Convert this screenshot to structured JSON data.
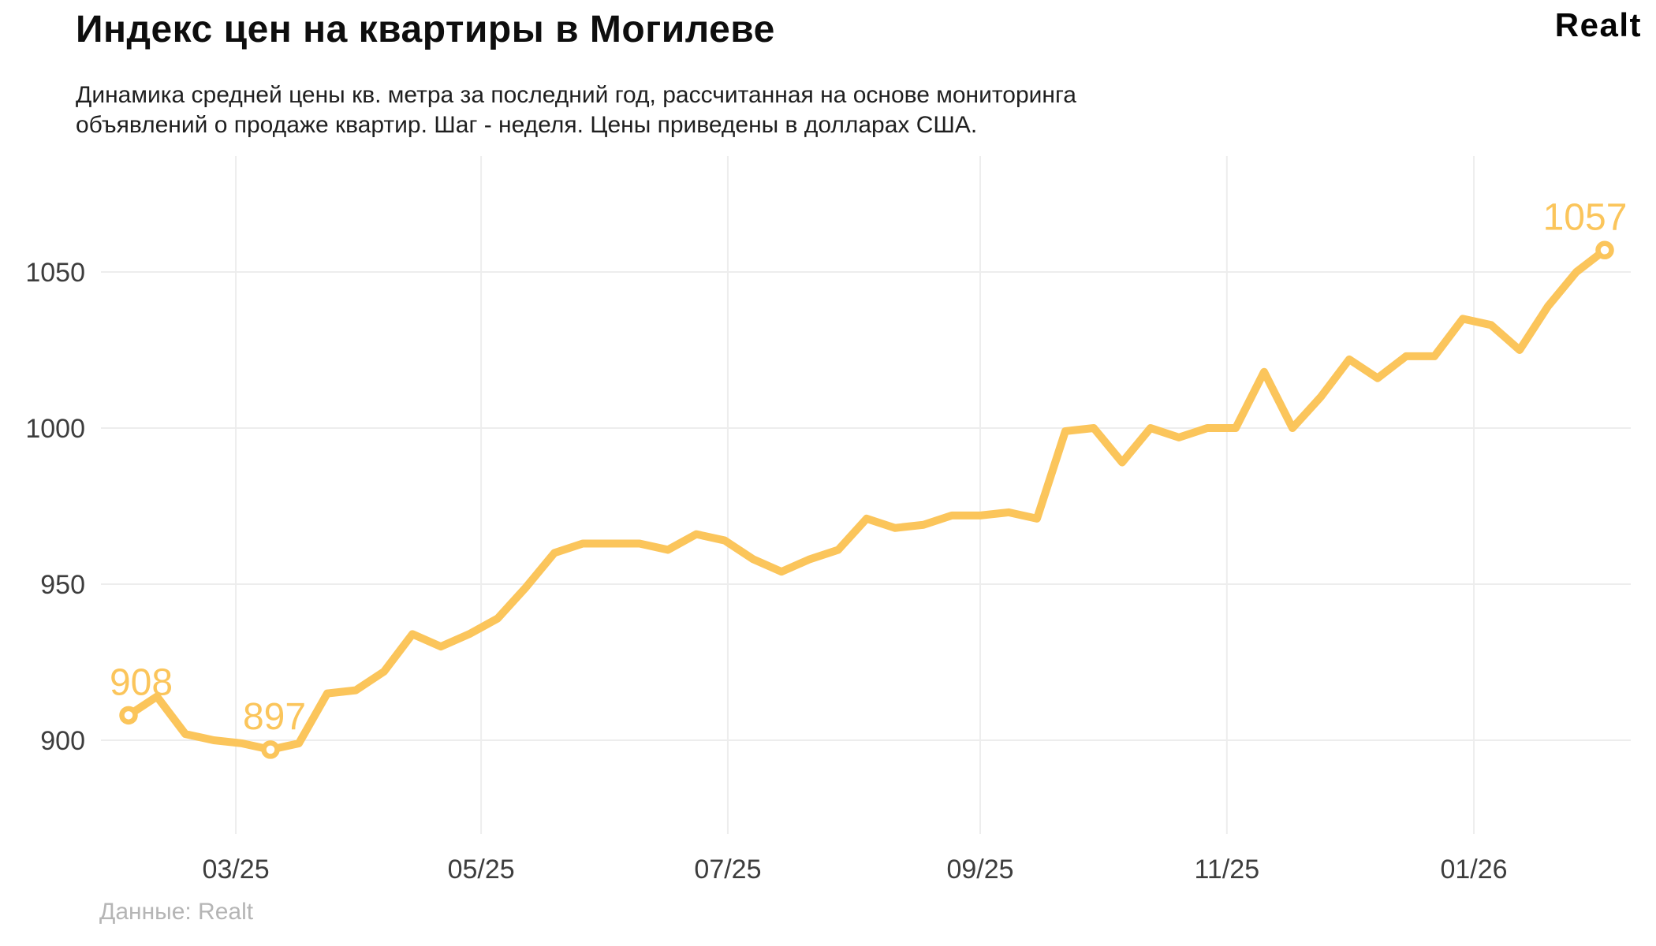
{
  "header": {
    "title": "Индекс цен на квартиры в Могилеве",
    "subtitle_line1": "Динамика средней цены кв. метра за последний год, рассчитанная на основе мониторинга",
    "subtitle_line2": "объявлений о продаже квартир. Шаг - неделя. Цены приведены в долларах США.",
    "brand_logo": "Realt"
  },
  "footer": {
    "source_label": "Данные: Realt"
  },
  "chart_data": {
    "type": "line",
    "title": "Индекс цен на квартиры в Могилеве",
    "step": "week",
    "series": [
      {
        "name": "Средняя цена кв. метра, USD",
        "values": [
          908,
          914,
          902,
          900,
          899,
          897,
          899,
          915,
          916,
          922,
          934,
          930,
          934,
          939,
          949,
          960,
          963,
          963,
          963,
          961,
          966,
          964,
          958,
          954,
          958,
          961,
          971,
          968,
          969,
          972,
          972,
          973,
          971,
          999,
          1000,
          989,
          1000,
          997,
          1000,
          1000,
          1018,
          1000,
          1010,
          1022,
          1016,
          1023,
          1023,
          1035,
          1033,
          1025,
          1039,
          1050,
          1057
        ]
      }
    ],
    "x_axis": {
      "tick_labels": [
        "03/25",
        "05/25",
        "07/25",
        "09/25",
        "11/25",
        "01/26"
      ],
      "tick_week_positions": [
        3.78,
        12.42,
        21.11,
        30.0,
        38.69,
        47.39
      ]
    },
    "y_axis": {
      "ticks": [
        900,
        950,
        1000,
        1050
      ],
      "ylim": [
        869,
        1093
      ]
    },
    "annotations": [
      {
        "index": 0,
        "label": "908"
      },
      {
        "index": 5,
        "label": "897"
      },
      {
        "index": 52,
        "label": "1057"
      }
    ],
    "line_color": "#FBC55B",
    "grid_color": "#ededed",
    "tick_color": "#3d3d3d",
    "grid": true,
    "legend": false
  }
}
